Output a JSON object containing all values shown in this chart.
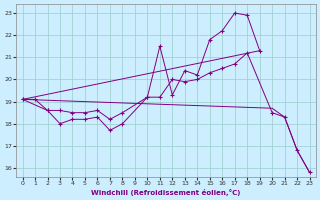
{
  "xlabel": "Windchill (Refroidissement éolien,°C)",
  "bg_color": "#cceeff",
  "line_color": "#800080",
  "grid_color": "#99cccc",
  "xlim": [
    -0.5,
    23.5
  ],
  "ylim": [
    15.6,
    23.4
  ],
  "yticks": [
    16,
    17,
    18,
    19,
    20,
    21,
    22,
    23
  ],
  "xticks": [
    0,
    1,
    2,
    3,
    4,
    5,
    6,
    7,
    8,
    9,
    10,
    11,
    12,
    13,
    14,
    15,
    16,
    17,
    18,
    19,
    20,
    21,
    22,
    23
  ],
  "zigzag_x": [
    0,
    1,
    2,
    3,
    4,
    5,
    6,
    7,
    8,
    10,
    11,
    12,
    13,
    14,
    15,
    16,
    17,
    18,
    19
  ],
  "zigzag_y": [
    19.1,
    19.1,
    18.6,
    18.0,
    18.2,
    18.2,
    18.3,
    17.7,
    18.0,
    19.2,
    21.5,
    19.3,
    20.4,
    20.2,
    21.8,
    22.2,
    23.0,
    22.9,
    21.3
  ],
  "smooth_x": [
    0,
    2,
    3,
    4,
    5,
    6,
    7,
    8,
    10,
    11,
    12,
    13,
    14,
    15,
    16,
    17,
    18,
    20,
    21,
    22,
    23
  ],
  "smooth_y": [
    19.1,
    18.6,
    18.6,
    18.5,
    18.5,
    18.6,
    18.2,
    18.5,
    19.2,
    19.2,
    20.0,
    19.9,
    20.0,
    20.3,
    20.5,
    20.7,
    21.2,
    18.5,
    18.3,
    16.8,
    15.8
  ],
  "trend1_x": [
    0,
    19
  ],
  "trend1_y": [
    19.1,
    21.3
  ],
  "trend2_x": [
    0,
    20,
    21,
    22,
    23
  ],
  "trend2_y": [
    19.1,
    18.7,
    18.3,
    16.8,
    15.8
  ]
}
